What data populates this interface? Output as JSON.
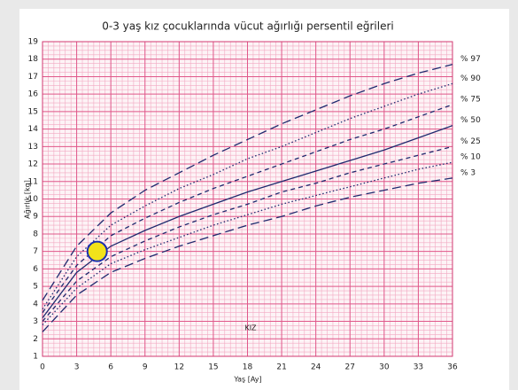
{
  "chart_data": {
    "type": "line",
    "title": "0-3 yaş kız çocuklarında vücut ağırlığı persentil eğrileri",
    "xlabel": "Yaş [Ay]",
    "ylabel": "Ağırlık [kg]",
    "annotation": "KIZ",
    "x": [
      0,
      3,
      6,
      9,
      12,
      15,
      18,
      21,
      24,
      27,
      30,
      33,
      36
    ],
    "xlim": [
      0,
      36
    ],
    "xticks": [
      0,
      3,
      6,
      9,
      12,
      15,
      18,
      21,
      24,
      27,
      30,
      33,
      36
    ],
    "ylim": [
      1,
      19
    ],
    "yticks": [
      1,
      2,
      3,
      4,
      5,
      6,
      7,
      8,
      9,
      10,
      11,
      12,
      13,
      14,
      15,
      16,
      17,
      18,
      19
    ],
    "grid": true,
    "series": [
      {
        "name": "% 97",
        "color": "#1f2a6e",
        "style": "long-dash",
        "values": [
          4.2,
          7.3,
          9.2,
          10.5,
          11.5,
          12.5,
          13.4,
          14.3,
          15.1,
          15.9,
          16.6,
          17.2,
          17.7
        ]
      },
      {
        "name": "% 90",
        "color": "#1f2a6e",
        "style": "dot",
        "values": [
          3.7,
          6.7,
          8.5,
          9.6,
          10.6,
          11.4,
          12.3,
          13.0,
          13.8,
          14.6,
          15.3,
          16.0,
          16.6
        ]
      },
      {
        "name": "% 75",
        "color": "#1f2a6e",
        "style": "dash",
        "values": [
          3.5,
          6.2,
          7.9,
          8.9,
          9.8,
          10.6,
          11.3,
          12.0,
          12.7,
          13.4,
          14.0,
          14.7,
          15.4
        ]
      },
      {
        "name": "% 50",
        "color": "#1f2a6e",
        "style": "solid",
        "values": [
          3.2,
          5.8,
          7.3,
          8.2,
          9.0,
          9.7,
          10.4,
          11.0,
          11.6,
          12.2,
          12.8,
          13.5,
          14.2
        ]
      },
      {
        "name": "% 25",
        "color": "#1f2a6e",
        "style": "dash",
        "values": [
          3.0,
          5.3,
          6.7,
          7.6,
          8.4,
          9.1,
          9.7,
          10.4,
          10.9,
          11.5,
          12.0,
          12.5,
          13.0
        ]
      },
      {
        "name": "% 10",
        "color": "#1f2a6e",
        "style": "dot",
        "values": [
          2.8,
          4.9,
          6.3,
          7.1,
          7.8,
          8.5,
          9.1,
          9.7,
          10.2,
          10.7,
          11.2,
          11.7,
          12.1
        ]
      },
      {
        "name": "% 3",
        "color": "#1f2a6e",
        "style": "long-dash",
        "values": [
          2.4,
          4.5,
          5.8,
          6.6,
          7.3,
          7.9,
          8.5,
          9.0,
          9.6,
          10.1,
          10.5,
          10.9,
          11.2
        ]
      }
    ],
    "points": [
      {
        "x": 4.8,
        "y": 7.0,
        "color": "#f2e21a"
      }
    ]
  }
}
